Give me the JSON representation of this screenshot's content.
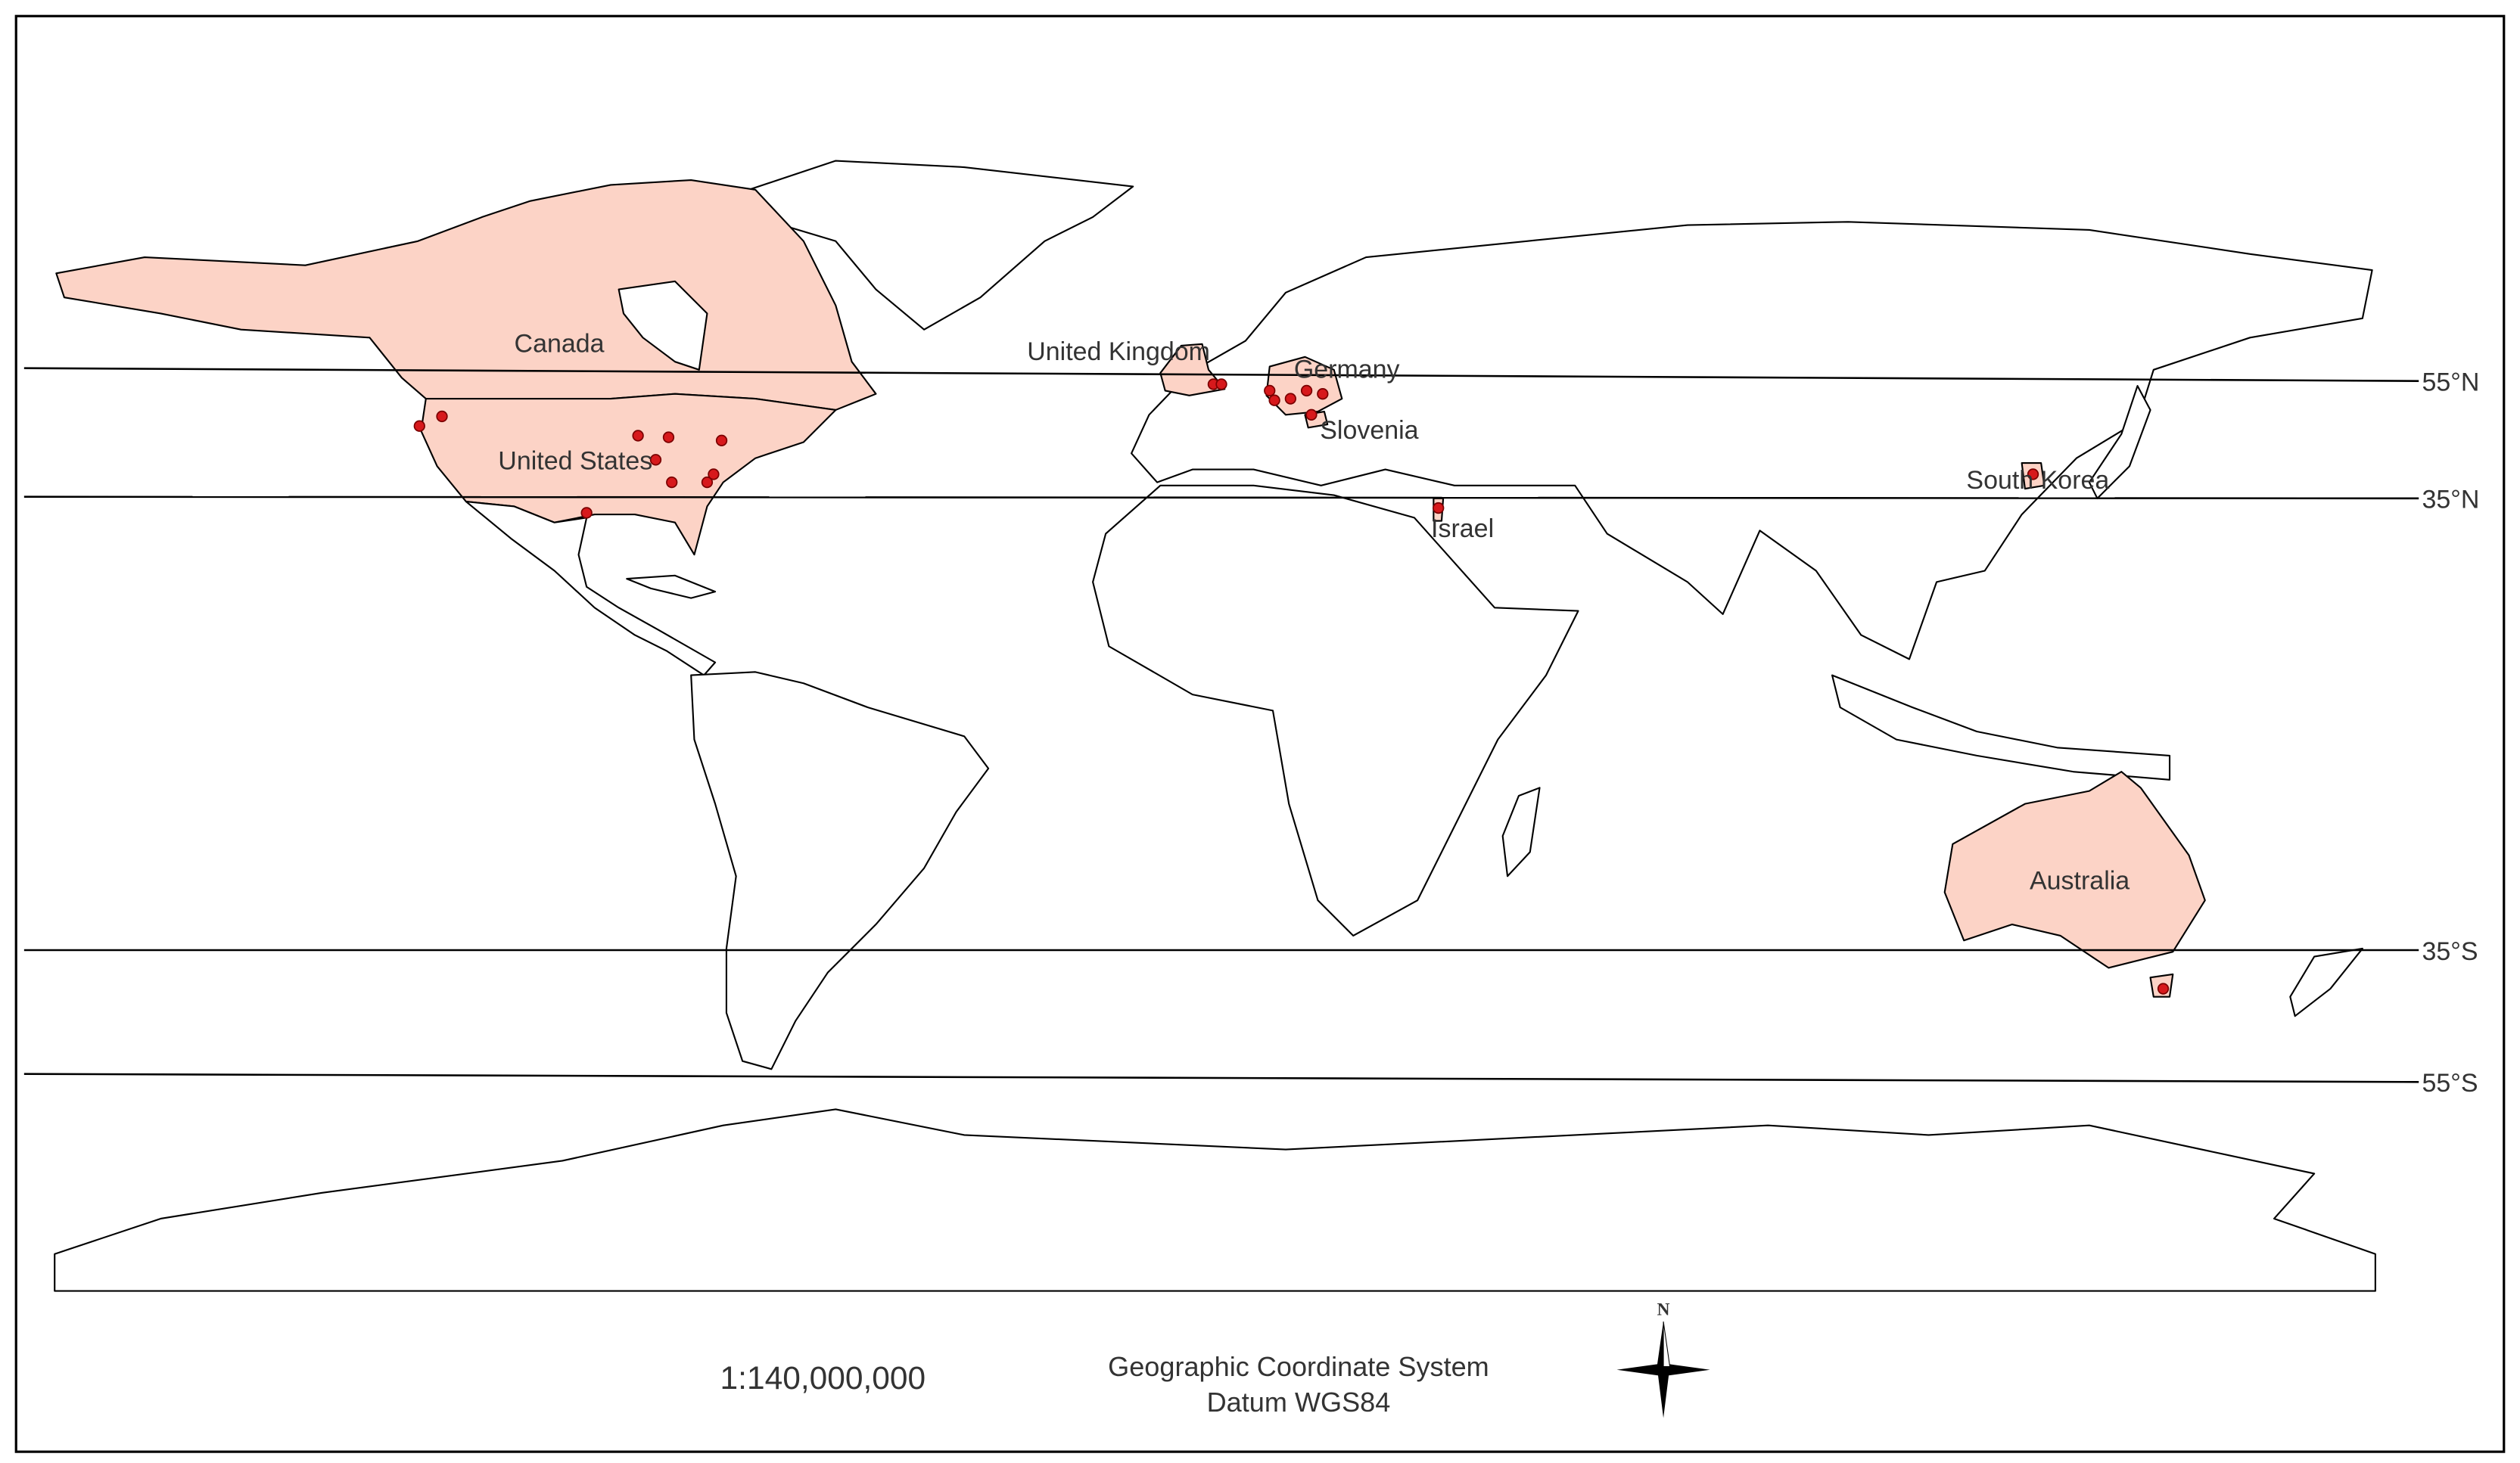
{
  "map": {
    "country_labels": [
      "Canada",
      "United States",
      "United Kingdom",
      "Germany",
      "Slovenia",
      "Israel",
      "South Korea",
      "Australia"
    ],
    "latitude_labels": [
      "55°N",
      "35°N",
      "35°S",
      "55°S"
    ]
  },
  "footer": {
    "scale": "1:140,000,000",
    "coordinate_system": "Geographic Coordinate System",
    "datum": "Datum WGS84",
    "north": "N"
  }
}
